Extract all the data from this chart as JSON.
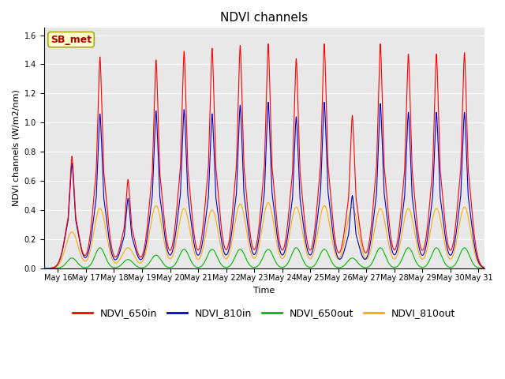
{
  "title": "NDVI channels",
  "ylabel": "NDVI channels (W/m2/nm)",
  "xlabel": "Time",
  "xlim_days": [
    15.5,
    31.2
  ],
  "ylim": [
    0.0,
    1.65
  ],
  "yticks": [
    0.0,
    0.2,
    0.4,
    0.6,
    0.8,
    1.0,
    1.2,
    1.4,
    1.6
  ],
  "xtick_labels": [
    "May 16",
    "May 17",
    "May 18",
    "May 19",
    "May 20",
    "May 21",
    "May 22",
    "May 23",
    "May 24",
    "May 25",
    "May 26",
    "May 27",
    "May 28",
    "May 29",
    "May 30",
    "May 31"
  ],
  "xtick_positions": [
    16,
    17,
    18,
    19,
    20,
    21,
    22,
    23,
    24,
    25,
    26,
    27,
    28,
    29,
    30,
    31
  ],
  "colors": {
    "NDVI_650in": "#ff0000",
    "NDVI_810in": "#0000cc",
    "NDVI_650out": "#00bb00",
    "NDVI_810out": "#ffaa00"
  },
  "annotation_text": "SB_met",
  "annotation_color": "#aa0000",
  "annotation_bg": "#ffffcc",
  "annotation_edge": "#aaaa00",
  "background_color": "#e8e8e8",
  "peak_centers": [
    16.5,
    17.5,
    18.5,
    19.5,
    20.5,
    21.5,
    22.5,
    23.5,
    24.5,
    25.5,
    26.5,
    27.5,
    28.5,
    29.5,
    30.5
  ],
  "peak_heights_650in": [
    0.77,
    1.45,
    0.61,
    1.43,
    1.49,
    1.51,
    1.53,
    1.54,
    1.44,
    1.54,
    1.05,
    1.54,
    1.47,
    1.47,
    1.48
  ],
  "peak_heights_810in": [
    0.72,
    1.06,
    0.48,
    1.08,
    1.09,
    1.06,
    1.12,
    1.14,
    1.04,
    1.14,
    0.5,
    1.13,
    1.07,
    1.07,
    1.07
  ],
  "peak_heights_650out": [
    0.07,
    0.14,
    0.06,
    0.09,
    0.13,
    0.13,
    0.13,
    0.13,
    0.14,
    0.13,
    0.07,
    0.14,
    0.14,
    0.14,
    0.14
  ],
  "peak_heights_810out": [
    0.25,
    0.41,
    0.14,
    0.43,
    0.41,
    0.4,
    0.44,
    0.45,
    0.42,
    0.43,
    0.42,
    0.41,
    0.41,
    0.41,
    0.42
  ],
  "title_fontsize": 11,
  "label_fontsize": 8,
  "tick_fontsize": 7,
  "legend_fontsize": 9
}
